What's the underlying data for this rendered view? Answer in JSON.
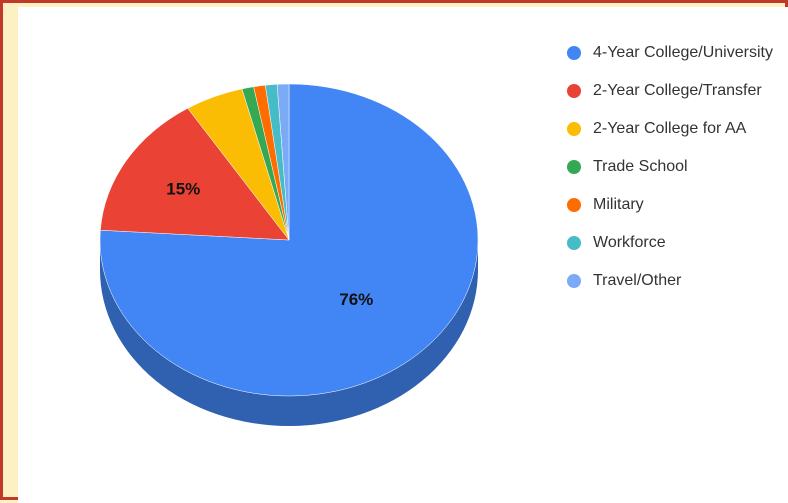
{
  "chart_data": {
    "type": "pie",
    "title": "",
    "categories": [
      "4-Year College/University",
      "2-Year College/Transfer",
      "2-Year College for AA",
      "Trade School",
      "Military",
      "Workforce",
      "Travel/Other"
    ],
    "values": [
      76,
      15,
      5,
      1,
      1,
      1,
      1
    ],
    "data_labels": [
      "76%",
      "15%",
      "",
      "",
      "",
      "",
      ""
    ],
    "colors": [
      "#4285f4",
      "#ea4335",
      "#fbbc04",
      "#34a853",
      "#ff6d01",
      "#46bdc6",
      "#7baaf7"
    ],
    "legend_position": "right",
    "style": "3d"
  }
}
